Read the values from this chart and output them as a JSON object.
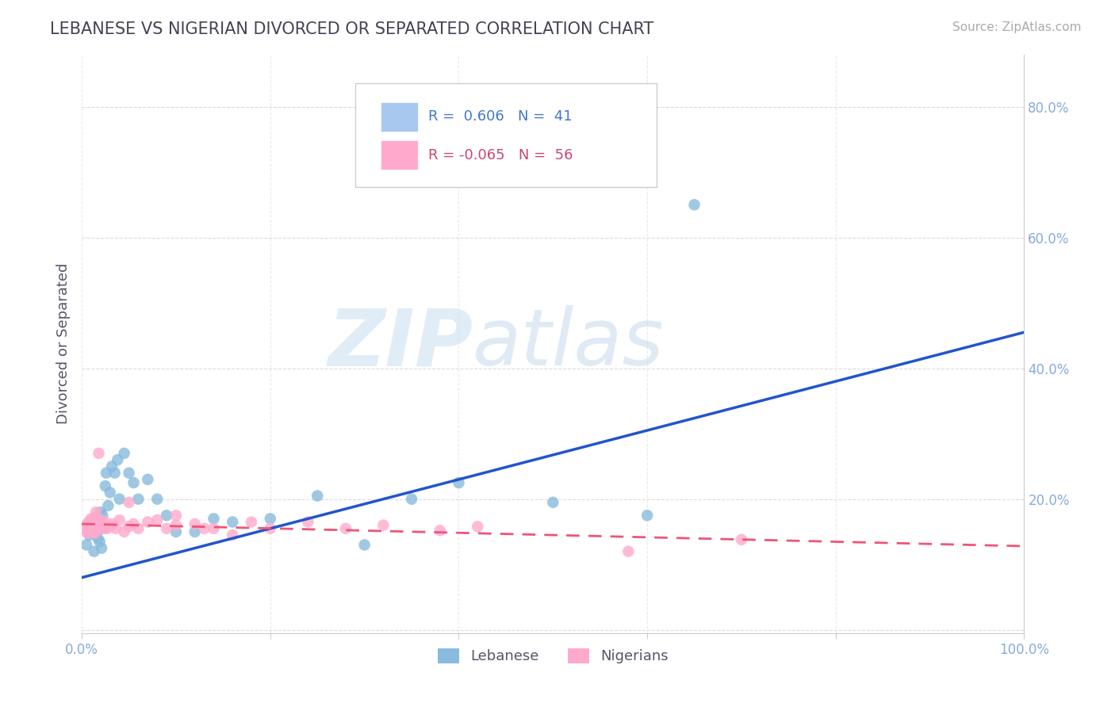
{
  "title": "LEBANESE VS NIGERIAN DIVORCED OR SEPARATED CORRELATION CHART",
  "source_text": "Source: ZipAtlas.com",
  "ylabel": "Divorced or Separated",
  "xlim": [
    0.0,
    1.0
  ],
  "ylim": [
    -0.005,
    0.88
  ],
  "x_ticks": [
    0.0,
    0.2,
    0.4,
    0.6,
    0.8,
    1.0
  ],
  "x_tick_labels": [
    "0.0%",
    "",
    "",
    "",
    "",
    "100.0%"
  ],
  "y_ticks": [
    0.0,
    0.2,
    0.4,
    0.6,
    0.8
  ],
  "y_tick_labels": [
    "",
    "20.0%",
    "40.0%",
    "60.0%",
    "80.0%"
  ],
  "watermark_zip": "ZIP",
  "watermark_atlas": "atlas",
  "lebanese_color": "#88bbdd",
  "nigerian_color": "#ffaacc",
  "lebanese_line_color": "#2255cc",
  "nigerian_line_color": "#ee5577",
  "background_color": "#ffffff",
  "grid_color": "#cccccc",
  "title_color": "#444455",
  "axis_label_color": "#555566",
  "tick_color": "#88aadd",
  "lebanese_R": 0.606,
  "lebanese_N": 41,
  "nigerian_R": -0.065,
  "nigerian_N": 56,
  "leb_line_x0": 0.0,
  "leb_line_y0": 0.08,
  "leb_line_x1": 1.0,
  "leb_line_y1": 0.455,
  "nig_line_x0": 0.0,
  "nig_line_y0": 0.162,
  "nig_line_x1": 1.0,
  "nig_line_y1": 0.128,
  "lebanese_x": [
    0.005,
    0.008,
    0.01,
    0.012,
    0.013,
    0.015,
    0.016,
    0.017,
    0.018,
    0.019,
    0.02,
    0.021,
    0.022,
    0.023,
    0.025,
    0.026,
    0.028,
    0.03,
    0.032,
    0.035,
    0.038,
    0.04,
    0.045,
    0.05,
    0.055,
    0.06,
    0.07,
    0.08,
    0.09,
    0.1,
    0.12,
    0.14,
    0.16,
    0.2,
    0.25,
    0.3,
    0.35,
    0.4,
    0.5,
    0.6,
    0.65
  ],
  "lebanese_y": [
    0.13,
    0.145,
    0.155,
    0.16,
    0.12,
    0.15,
    0.165,
    0.14,
    0.17,
    0.135,
    0.18,
    0.125,
    0.175,
    0.155,
    0.22,
    0.24,
    0.19,
    0.21,
    0.25,
    0.24,
    0.26,
    0.2,
    0.27,
    0.24,
    0.225,
    0.2,
    0.23,
    0.2,
    0.175,
    0.15,
    0.15,
    0.17,
    0.165,
    0.17,
    0.205,
    0.13,
    0.2,
    0.225,
    0.195,
    0.175,
    0.65
  ],
  "nigerian_x": [
    0.003,
    0.005,
    0.006,
    0.007,
    0.008,
    0.009,
    0.01,
    0.01,
    0.011,
    0.011,
    0.012,
    0.012,
    0.013,
    0.013,
    0.014,
    0.014,
    0.015,
    0.015,
    0.016,
    0.016,
    0.017,
    0.018,
    0.019,
    0.02,
    0.021,
    0.022,
    0.023,
    0.025,
    0.027,
    0.03,
    0.033,
    0.036,
    0.04,
    0.045,
    0.05,
    0.055,
    0.06,
    0.07,
    0.08,
    0.09,
    0.1,
    0.12,
    0.14,
    0.16,
    0.2,
    0.24,
    0.28,
    0.32,
    0.38,
    0.42,
    0.05,
    0.1,
    0.13,
    0.18,
    0.58,
    0.7
  ],
  "nigerian_y": [
    0.155,
    0.16,
    0.148,
    0.165,
    0.152,
    0.158,
    0.162,
    0.17,
    0.155,
    0.168,
    0.16,
    0.15,
    0.165,
    0.155,
    0.172,
    0.148,
    0.18,
    0.158,
    0.155,
    0.165,
    0.162,
    0.27,
    0.16,
    0.168,
    0.155,
    0.162,
    0.155,
    0.165,
    0.155,
    0.158,
    0.162,
    0.155,
    0.168,
    0.15,
    0.158,
    0.162,
    0.155,
    0.165,
    0.168,
    0.155,
    0.16,
    0.162,
    0.155,
    0.145,
    0.155,
    0.165,
    0.155,
    0.16,
    0.152,
    0.158,
    0.195,
    0.175,
    0.155,
    0.165,
    0.12,
    0.138
  ]
}
